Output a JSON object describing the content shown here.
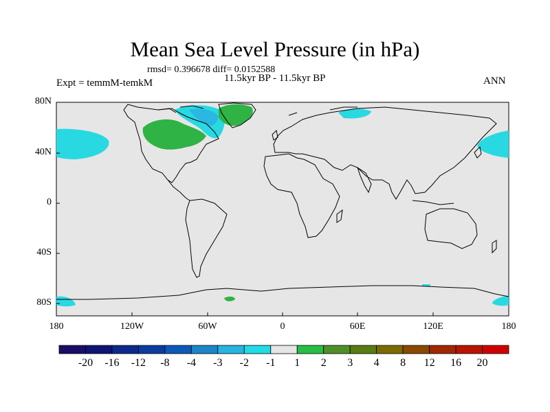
{
  "title": "Mean Sea Level Pressure (in hPa)",
  "stats": "rmsd= 0.396678 diff= 0.0152588",
  "experiment": "Expt = temmM-temkM",
  "period": "11.5kyr BP - 11.5kyr BP",
  "season": "ANN",
  "y_axis_labels": [
    "80N",
    "40N",
    "0",
    "40S",
    "80S"
  ],
  "x_axis_labels": [
    "180",
    "120W",
    "60W",
    "0",
    "60E",
    "120E",
    "180"
  ],
  "colorbar": {
    "labels": [
      "-20",
      "-16",
      "-12",
      "-8",
      "-4",
      "-3",
      "-2",
      "-1",
      "1",
      "2",
      "3",
      "4",
      "8",
      "12",
      "16",
      "20"
    ],
    "colors": [
      "#1a0d66",
      "#0d1473",
      "#0d2a8a",
      "#0b3ca0",
      "#0b59b8",
      "#1a86c8",
      "#27b4e0",
      "#1fdce6",
      "#e6e6e6",
      "#27be44",
      "#4f8f28",
      "#5a7a14",
      "#7a6a00",
      "#8a4a00",
      "#a02800",
      "#b81400",
      "#d00000"
    ]
  },
  "colors": {
    "ocean_background": "#e6e6e6",
    "positive_anomaly": "#2fb344",
    "negative_small": "#28d9e1",
    "negative_medium": "#2bb7e2"
  }
}
